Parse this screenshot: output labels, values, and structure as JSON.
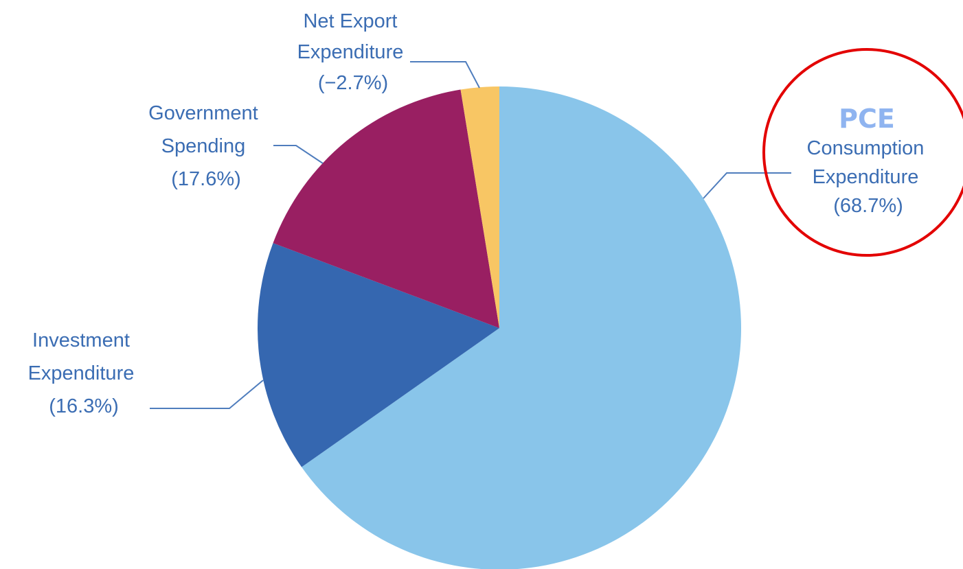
{
  "chart_data": {
    "type": "pie",
    "slices": [
      {
        "label_lines": [
          "Consumption",
          "Expenditure",
          "(68.7%)"
        ],
        "value": 68.7,
        "color": "#89c5ea"
      },
      {
        "label_lines": [
          "Investment",
          "Expenditure",
          "(16.3%)"
        ],
        "value": 16.3,
        "color": "#3567b0"
      },
      {
        "label_lines": [
          "Government",
          "Spending",
          "(17.6%)"
        ],
        "value": 17.6,
        "color": "#991f62"
      },
      {
        "label_lines": [
          "Net Export",
          "Expenditure",
          "(−2.7%)"
        ],
        "value": -2.7,
        "color": "#f8c664"
      }
    ]
  },
  "annotation": {
    "text": "PCE",
    "circle_color": "#e30000",
    "text_color": "#8fb4f0"
  }
}
